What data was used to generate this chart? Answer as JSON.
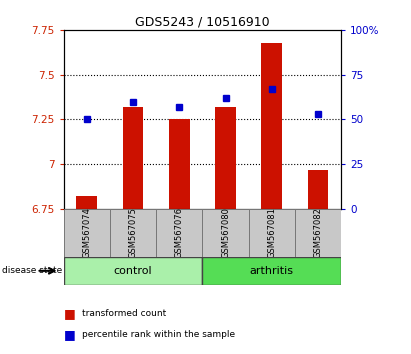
{
  "title": "GDS5243 / 10516910",
  "samples": [
    "GSM567074",
    "GSM567075",
    "GSM567076",
    "GSM567080",
    "GSM567081",
    "GSM567082"
  ],
  "red_values": [
    6.82,
    7.32,
    7.25,
    7.32,
    7.68,
    6.97
  ],
  "blue_values": [
    7.25,
    7.35,
    7.32,
    7.37,
    7.42,
    7.28
  ],
  "ylim_left": [
    6.75,
    7.75
  ],
  "ylim_right": [
    0,
    100
  ],
  "yticks_left": [
    6.75,
    7.0,
    7.25,
    7.5,
    7.75
  ],
  "yticks_right": [
    0,
    25,
    50,
    75,
    100
  ],
  "ytick_labels_left": [
    "6.75",
    "7",
    "7.25",
    "7.5",
    "7.75"
  ],
  "ytick_labels_right": [
    "0",
    "25",
    "50",
    "75",
    "100%"
  ],
  "hlines": [
    7.0,
    7.25,
    7.5
  ],
  "n_control": 3,
  "n_arthritis": 3,
  "control_label": "control",
  "arthritis_label": "arthritis",
  "control_color": "#aaf0aa",
  "arthritis_color": "#55dd55",
  "bar_color": "#CC1100",
  "dot_color": "#0000CC",
  "bg_color": "#C8C8C8",
  "left_tick_color": "#CC2200",
  "right_tick_color": "#0000CC",
  "legend_red_label": "transformed count",
  "legend_blue_label": "percentile rank within the sample",
  "disease_state_label": "disease state"
}
